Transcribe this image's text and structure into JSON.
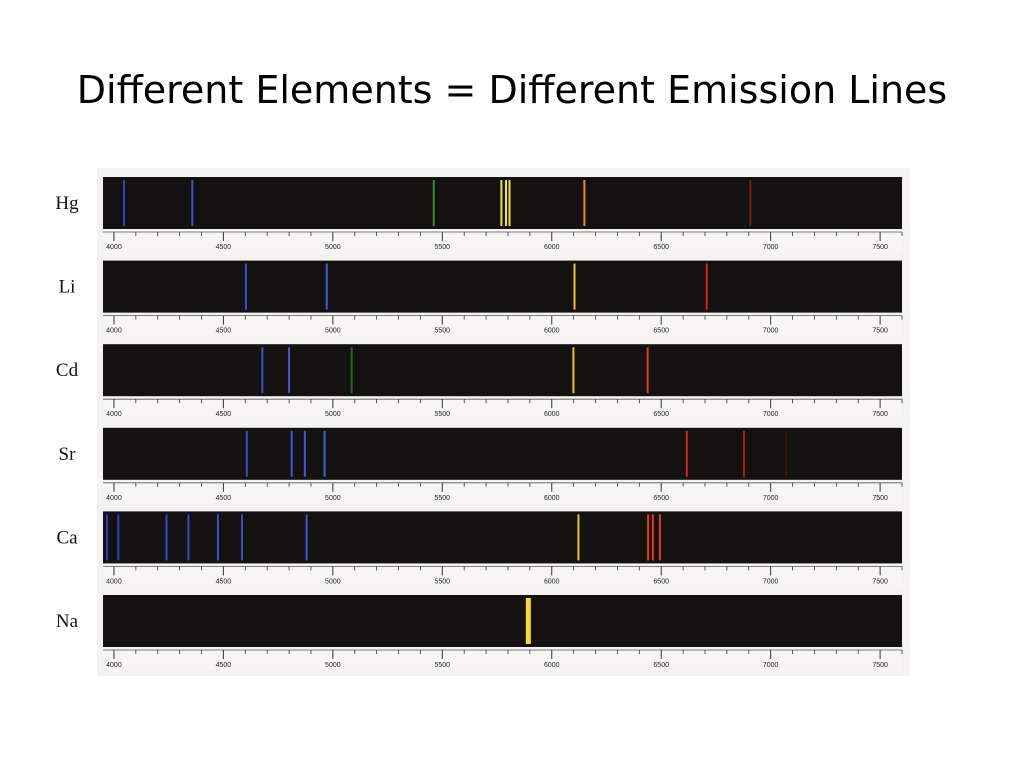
{
  "slide": {
    "title": "Different Elements = Different Emission Lines"
  },
  "chart_data": {
    "type": "emission-spectra",
    "xlim": [
      3950,
      7600
    ],
    "tick_labels": [
      4000,
      4500,
      5000,
      5500,
      6000,
      6500,
      7000,
      7500
    ],
    "minor_tick_step": 100,
    "background_color": "#141210",
    "rows": [
      {
        "element": "Hg",
        "lines": [
          {
            "wl": 4046,
            "color": "#3340c8"
          },
          {
            "wl": 4358,
            "color": "#3d4fd4"
          },
          {
            "wl": 5461,
            "color": "#2f8f2a"
          },
          {
            "wl": 5770,
            "color": "#f0e030"
          },
          {
            "wl": 5791,
            "color": "#f4e63a"
          },
          {
            "wl": 5807,
            "color": "#f0e030"
          },
          {
            "wl": 6149,
            "color": "#f08a1c"
          },
          {
            "wl": 6907,
            "color": "#7a1a12"
          }
        ]
      },
      {
        "element": "Li",
        "lines": [
          {
            "wl": 4603,
            "color": "#3b4bd0"
          },
          {
            "wl": 4972,
            "color": "#3f5ad8"
          },
          {
            "wl": 6104,
            "color": "#f0c020"
          },
          {
            "wl": 6708,
            "color": "#e02020"
          }
        ]
      },
      {
        "element": "Cd",
        "lines": [
          {
            "wl": 4678,
            "color": "#3b4bd0"
          },
          {
            "wl": 4800,
            "color": "#3f56d6"
          },
          {
            "wl": 5086,
            "color": "#1f6a22"
          },
          {
            "wl": 6099,
            "color": "#f0c020"
          },
          {
            "wl": 6438,
            "color": "#e83a1c"
          }
        ]
      },
      {
        "element": "Sr",
        "lines": [
          {
            "wl": 4607,
            "color": "#3b4bd0"
          },
          {
            "wl": 4812,
            "color": "#3f56d6"
          },
          {
            "wl": 4872,
            "color": "#3f56d6"
          },
          {
            "wl": 4962,
            "color": "#4060dc"
          },
          {
            "wl": 6617,
            "color": "#e02020"
          },
          {
            "wl": 6878,
            "color": "#b01a14"
          },
          {
            "wl": 7070,
            "color": "#3a120c"
          }
        ]
      },
      {
        "element": "Ca",
        "lines": [
          {
            "wl": 3968,
            "color": "#3038b8"
          },
          {
            "wl": 4020,
            "color": "#3340c4"
          },
          {
            "wl": 4240,
            "color": "#3845cc"
          },
          {
            "wl": 4340,
            "color": "#3845cc"
          },
          {
            "wl": 4475,
            "color": "#3b4bd0"
          },
          {
            "wl": 4585,
            "color": "#3b4bd0"
          },
          {
            "wl": 4880,
            "color": "#3f56d6"
          },
          {
            "wl": 6122,
            "color": "#f0c020"
          },
          {
            "wl": 6440,
            "color": "#e83a1c"
          },
          {
            "wl": 6462,
            "color": "#e8341c"
          },
          {
            "wl": 6494,
            "color": "#e83a1c"
          }
        ]
      },
      {
        "element": "Na",
        "lines": [
          {
            "wl": 5893,
            "color": "#f4dc2a",
            "width": 5
          }
        ]
      }
    ]
  }
}
